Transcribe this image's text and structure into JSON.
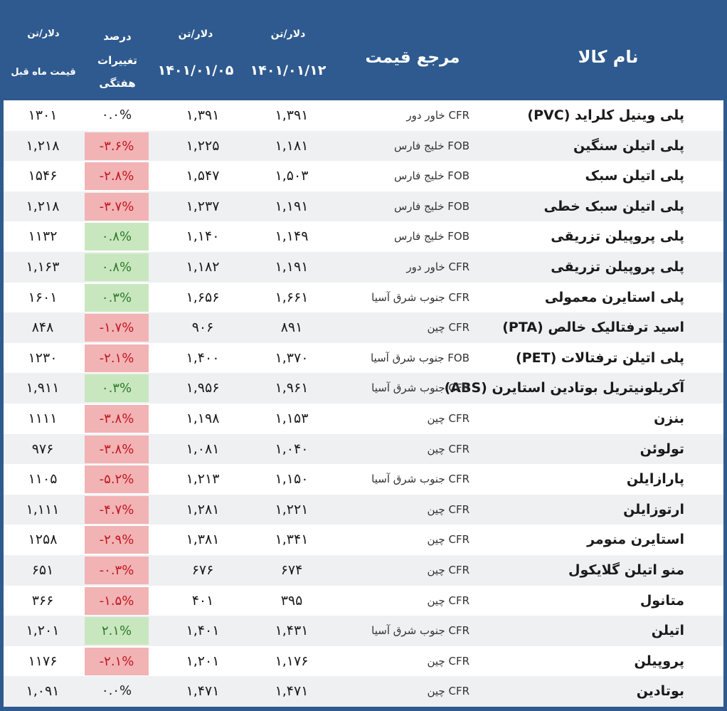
{
  "header": {
    "name": "نام کالا",
    "reference": "مرجع قیمت",
    "col1_unit": "دلار/تن",
    "col1_date": "۱۴۰۱/۰۱/۱۲",
    "col2_unit": "دلار/تن",
    "col2_date": "۱۴۰۱/۰۱/۰۵",
    "col3_line1": "درصد",
    "col3_line2": "تغییرات",
    "col3_line3": "هفتگی",
    "col4_unit": "دلار/تن",
    "col4_label": "قیمت ماه قبل"
  },
  "colors": {
    "header_bg": "#2f5a8f",
    "negative_bg": "#f2b3b5",
    "negative_text": "#c0161f",
    "positive_bg": "#c9e7bf",
    "positive_text": "#2d7a2a"
  },
  "rows": [
    {
      "name": "پلی وینیل کلراید (PVC)",
      "ref": "CFR  خاور دور",
      "p1": "۱,۳۹۱",
      "p2": "۱,۳۹۱",
      "chg": "۰.۰%",
      "dir": "zero",
      "prev": "۱۳۰۱"
    },
    {
      "name": "پلی اتیلن سنگین",
      "ref": "FOB  خلیج فارس",
      "p1": "۱,۱۸۱",
      "p2": "۱,۲۲۵",
      "chg": "-۳.۶%",
      "dir": "neg",
      "prev": "۱,۲۱۸"
    },
    {
      "name": "پلی اتیلن سبک",
      "ref": "FOB  خلیج فارس",
      "p1": "۱,۵۰۳",
      "p2": "۱,۵۴۷",
      "chg": "-۲.۸%",
      "dir": "neg",
      "prev": "۱۵۴۶"
    },
    {
      "name": "پلی اتیلن سبک خطی",
      "ref": "FOB  خلیج فارس",
      "p1": "۱,۱۹۱",
      "p2": "۱,۲۳۷",
      "chg": "-۳.۷%",
      "dir": "neg",
      "prev": "۱,۲۱۸"
    },
    {
      "name": "پلی پروپیلن تزریقی",
      "ref": "FOB  خلیج فارس",
      "p1": "۱,۱۴۹",
      "p2": "۱,۱۴۰",
      "chg": "۰.۸%",
      "dir": "pos",
      "prev": "۱۱۳۲"
    },
    {
      "name": "پلی پروپیلن تزریقی",
      "ref": "CFR  خاور دور",
      "p1": "۱,۱۹۱",
      "p2": "۱,۱۸۲",
      "chg": "۰.۸%",
      "dir": "pos",
      "prev": "۱,۱۶۳"
    },
    {
      "name": "پلی استایرن معمولی",
      "ref": "CFR جنوب شرق آسیا",
      "p1": "۱,۶۶۱",
      "p2": "۱,۶۵۶",
      "chg": "۰.۳%",
      "dir": "pos",
      "prev": "۱۶۰۱"
    },
    {
      "name": "اسید ترفتالیک خالص (PTA)",
      "ref": "CFR  چین",
      "p1": "۸۹۱",
      "p2": "۹۰۶",
      "chg": "-۱.۷%",
      "dir": "neg",
      "prev": "۸۴۸"
    },
    {
      "name": "پلی اتیلن ترفتالات (PET)",
      "ref": "FOB جنوب شرق آسیا",
      "p1": "۱,۳۷۰",
      "p2": "۱,۴۰۰",
      "chg": "-۲.۱%",
      "dir": "neg",
      "prev": "۱۲۳۰"
    },
    {
      "name": "آکریلونیتریل بوتادین استایرن (ABS)",
      "ref": "CFR جنوب شرق آسیا",
      "p1": "۱,۹۶۱",
      "p2": "۱,۹۵۶",
      "chg": "۰.۳%",
      "dir": "pos",
      "prev": "۱,۹۱۱"
    },
    {
      "name": "بنزن",
      "ref": "CFR  چین",
      "p1": "۱,۱۵۳",
      "p2": "۱,۱۹۸",
      "chg": "-۳.۸%",
      "dir": "neg",
      "prev": "۱۱۱۱"
    },
    {
      "name": "تولوئن",
      "ref": "CFR  چین",
      "p1": "۱,۰۴۰",
      "p2": "۱,۰۸۱",
      "chg": "-۳.۸%",
      "dir": "neg",
      "prev": "۹۷۶"
    },
    {
      "name": "پارازایلن",
      "ref": "CFR جنوب شرق آسیا",
      "p1": "۱,۱۵۰",
      "p2": "۱,۲۱۳",
      "chg": "-۵.۲%",
      "dir": "neg",
      "prev": "۱۱۰۵"
    },
    {
      "name": "ارتوزایلن",
      "ref": "CFR  چین",
      "p1": "۱,۲۲۱",
      "p2": "۱,۲۸۱",
      "chg": "-۴.۷%",
      "dir": "neg",
      "prev": "۱,۱۱۱"
    },
    {
      "name": "استایرن منومر",
      "ref": "CFR  چین",
      "p1": "۱,۳۴۱",
      "p2": "۱,۳۸۱",
      "chg": "-۲.۹%",
      "dir": "neg",
      "prev": "۱۲۵۸"
    },
    {
      "name": "منو اتیلن گلایکول",
      "ref": "CFR  چین",
      "p1": "۶۷۴",
      "p2": "۶۷۶",
      "chg": "-۰.۳%",
      "dir": "neg",
      "prev": "۶۵۱"
    },
    {
      "name": "متانول",
      "ref": "CFR  چین",
      "p1": "۳۹۵",
      "p2": "۴۰۱",
      "chg": "-۱.۵%",
      "dir": "neg",
      "prev": "۳۶۶"
    },
    {
      "name": "اتیلن",
      "ref": "CFR جنوب شرق آسیا",
      "p1": "۱,۴۳۱",
      "p2": "۱,۴۰۱",
      "chg": "۲.۱%",
      "dir": "pos",
      "prev": "۱,۲۰۱"
    },
    {
      "name": "پروپیلن",
      "ref": "CFR  چین",
      "p1": "۱,۱۷۶",
      "p2": "۱,۲۰۱",
      "chg": "-۲.۱%",
      "dir": "neg",
      "prev": "۱۱۷۶"
    },
    {
      "name": "بوتادین",
      "ref": "CFR  چین",
      "p1": "۱,۴۷۱",
      "p2": "۱,۴۷۱",
      "chg": "۰.۰%",
      "dir": "zero",
      "prev": "۱,۰۹۱"
    }
  ]
}
